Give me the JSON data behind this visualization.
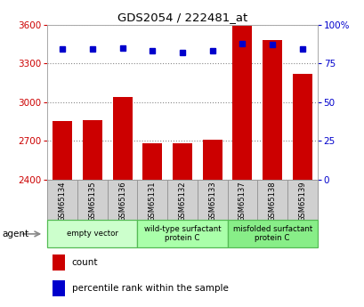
{
  "title": "GDS2054 / 222481_at",
  "samples": [
    "GSM65134",
    "GSM65135",
    "GSM65136",
    "GSM65131",
    "GSM65132",
    "GSM65133",
    "GSM65137",
    "GSM65138",
    "GSM65139"
  ],
  "counts": [
    2850,
    2860,
    3040,
    2680,
    2680,
    2710,
    3590,
    3480,
    3220
  ],
  "percentiles": [
    84,
    84,
    85,
    83,
    82,
    83,
    88,
    87,
    84
  ],
  "ylim_left": [
    2400,
    3600
  ],
  "ylim_right": [
    0,
    100
  ],
  "yticks_left": [
    2400,
    2700,
    3000,
    3300,
    3600
  ],
  "yticks_right": [
    0,
    25,
    50,
    75,
    100
  ],
  "bar_color": "#cc0000",
  "dot_color": "#0000cc",
  "bar_bottom": 2400,
  "left_tick_color": "#cc0000",
  "right_tick_color": "#0000cc",
  "grid_color": "#888888",
  "sample_box_color": "#d0d0d0",
  "group_colors": [
    "#ccffcc",
    "#aaffaa",
    "#88ee88"
  ],
  "group_labels": [
    "empty vector",
    "wild-type surfactant\nprotein C",
    "misfolded surfactant\nprotein C"
  ],
  "group_ranges": [
    [
      0,
      2
    ],
    [
      3,
      5
    ],
    [
      6,
      8
    ]
  ]
}
